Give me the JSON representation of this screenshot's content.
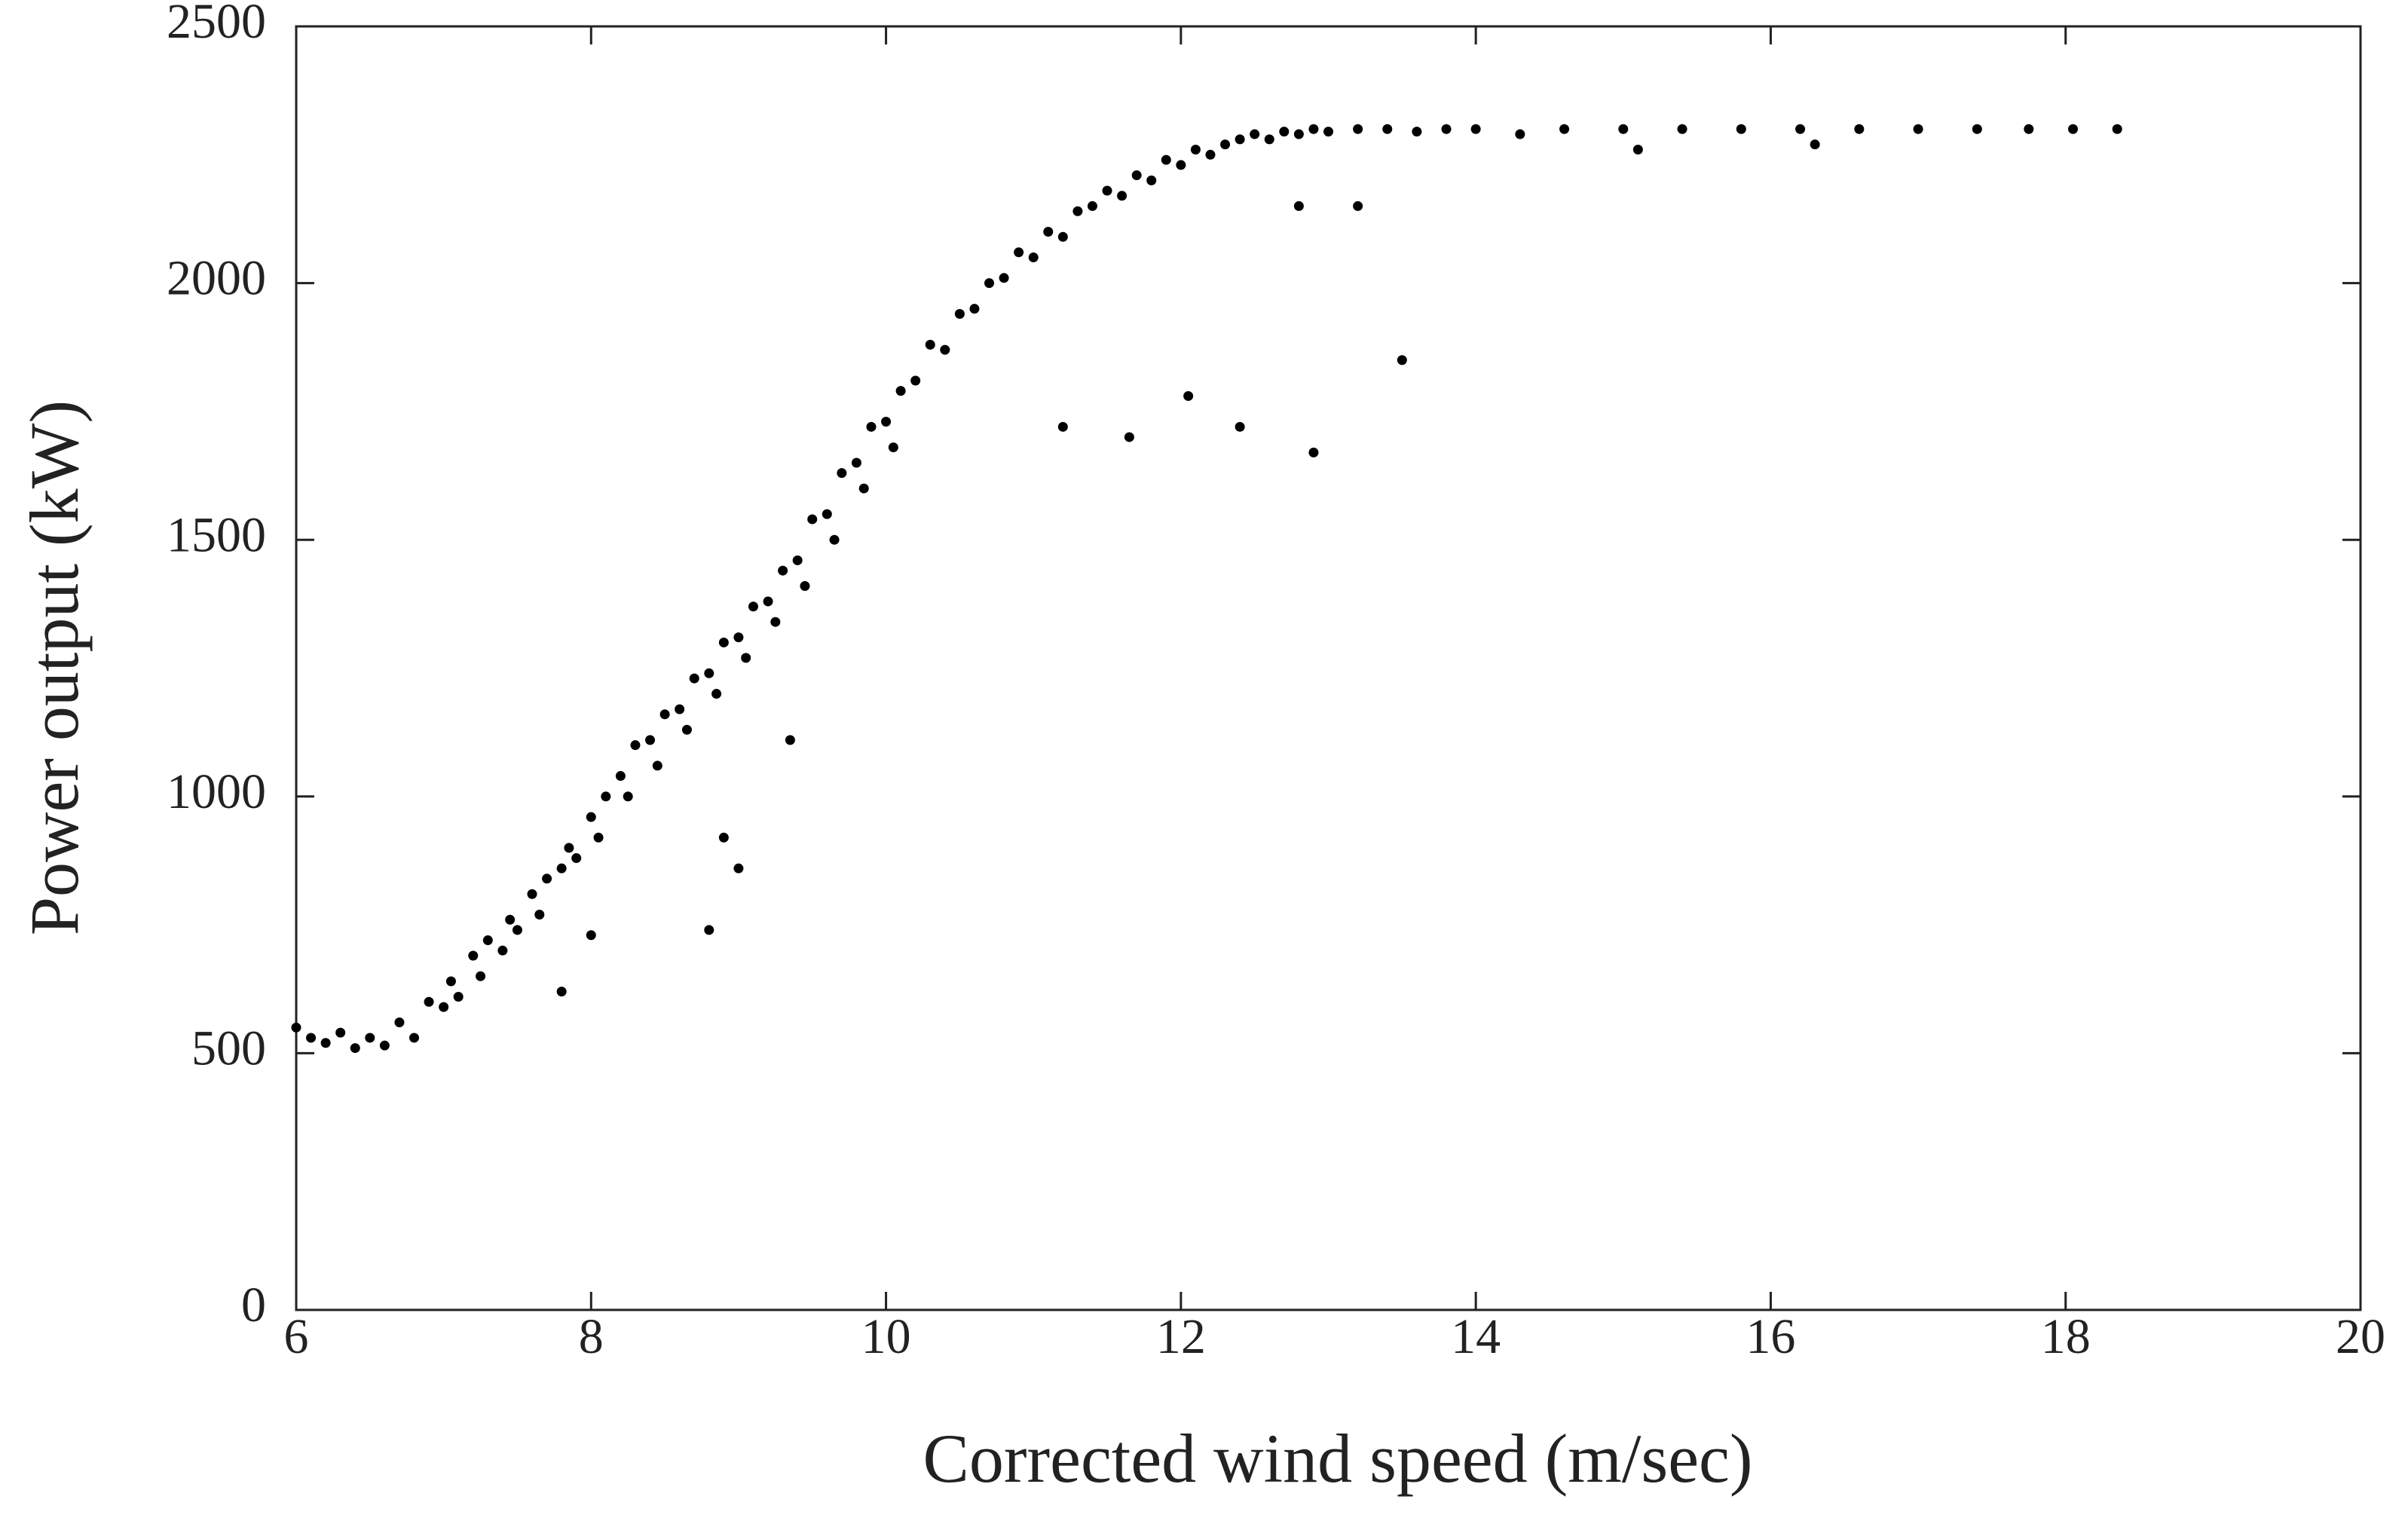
{
  "chart_data": {
    "type": "scatter",
    "x_label": "Corrected wind speed (m/sec)",
    "y_label": "Power output (kW)",
    "color": "#000000",
    "xlim": [
      6,
      20
    ],
    "xticks": [
      6,
      8,
      10,
      12,
      14,
      16,
      18,
      20
    ],
    "ylim": [
      0,
      2500
    ],
    "yticks": [
      0,
      500,
      1000,
      1500,
      2000,
      2500
    ],
    "grid": false,
    "x": [
      6.0,
      6.1,
      6.2,
      6.3,
      6.4,
      6.5,
      6.6,
      6.7,
      6.8,
      6.9,
      7.0,
      7.05,
      7.1,
      7.2,
      7.25,
      7.3,
      7.4,
      7.45,
      7.5,
      7.6,
      7.65,
      7.7,
      7.8,
      7.85,
      7.9,
      8.0,
      8.05,
      8.1,
      8.2,
      8.25,
      8.3,
      8.4,
      8.45,
      8.5,
      8.6,
      8.65,
      8.7,
      8.8,
      8.85,
      8.9,
      9.0,
      9.05,
      9.1,
      9.2,
      9.25,
      9.3,
      9.4,
      9.45,
      9.5,
      9.6,
      9.65,
      9.7,
      9.8,
      9.85,
      9.9,
      10.0,
      10.05,
      10.1,
      10.2,
      10.3,
      10.4,
      10.5,
      10.6,
      10.7,
      10.8,
      10.9,
      11.0,
      11.1,
      11.2,
      11.3,
      11.4,
      11.5,
      11.6,
      11.7,
      11.8,
      11.9,
      12.0,
      12.1,
      12.2,
      12.3,
      12.4,
      12.5,
      12.6,
      12.7,
      12.8,
      12.9,
      13.0,
      13.2,
      13.4,
      13.6,
      13.8,
      14.0,
      14.3,
      14.6,
      15.0,
      15.4,
      15.8,
      16.2,
      16.6,
      17.0,
      17.4,
      17.75,
      11.2,
      11.65,
      12.05,
      12.4,
      12.9,
      13.5,
      9.35,
      8.9,
      9.0,
      8.8,
      8.0,
      7.8,
      12.8,
      13.2,
      15.1,
      16.3,
      18.05,
      18.35
    ],
    "y": [
      550,
      530,
      520,
      540,
      510,
      530,
      515,
      560,
      530,
      600,
      590,
      640,
      610,
      690,
      650,
      720,
      700,
      760,
      740,
      810,
      770,
      840,
      860,
      900,
      880,
      960,
      920,
      1000,
      1040,
      1000,
      1100,
      1110,
      1060,
      1160,
      1170,
      1130,
      1230,
      1240,
      1200,
      1300,
      1310,
      1270,
      1370,
      1380,
      1340,
      1440,
      1460,
      1410,
      1540,
      1550,
      1500,
      1630,
      1650,
      1600,
      1720,
      1730,
      1680,
      1790,
      1810,
      1880,
      1870,
      1940,
      1950,
      2000,
      2010,
      2060,
      2050,
      2100,
      2090,
      2140,
      2150,
      2180,
      2170,
      2210,
      2200,
      2240,
      2230,
      2260,
      2250,
      2270,
      2280,
      2290,
      2280,
      2295,
      2290,
      2300,
      2295,
      2300,
      2300,
      2295,
      2300,
      2300,
      2290,
      2300,
      2300,
      2300,
      2300,
      2300,
      2300,
      2300,
      2300,
      2300,
      1720,
      1700,
      1780,
      1720,
      1670,
      1850,
      1110,
      920,
      860,
      740,
      730,
      620,
      2150,
      2150,
      2260,
      2270,
      2300,
      2300
    ]
  }
}
